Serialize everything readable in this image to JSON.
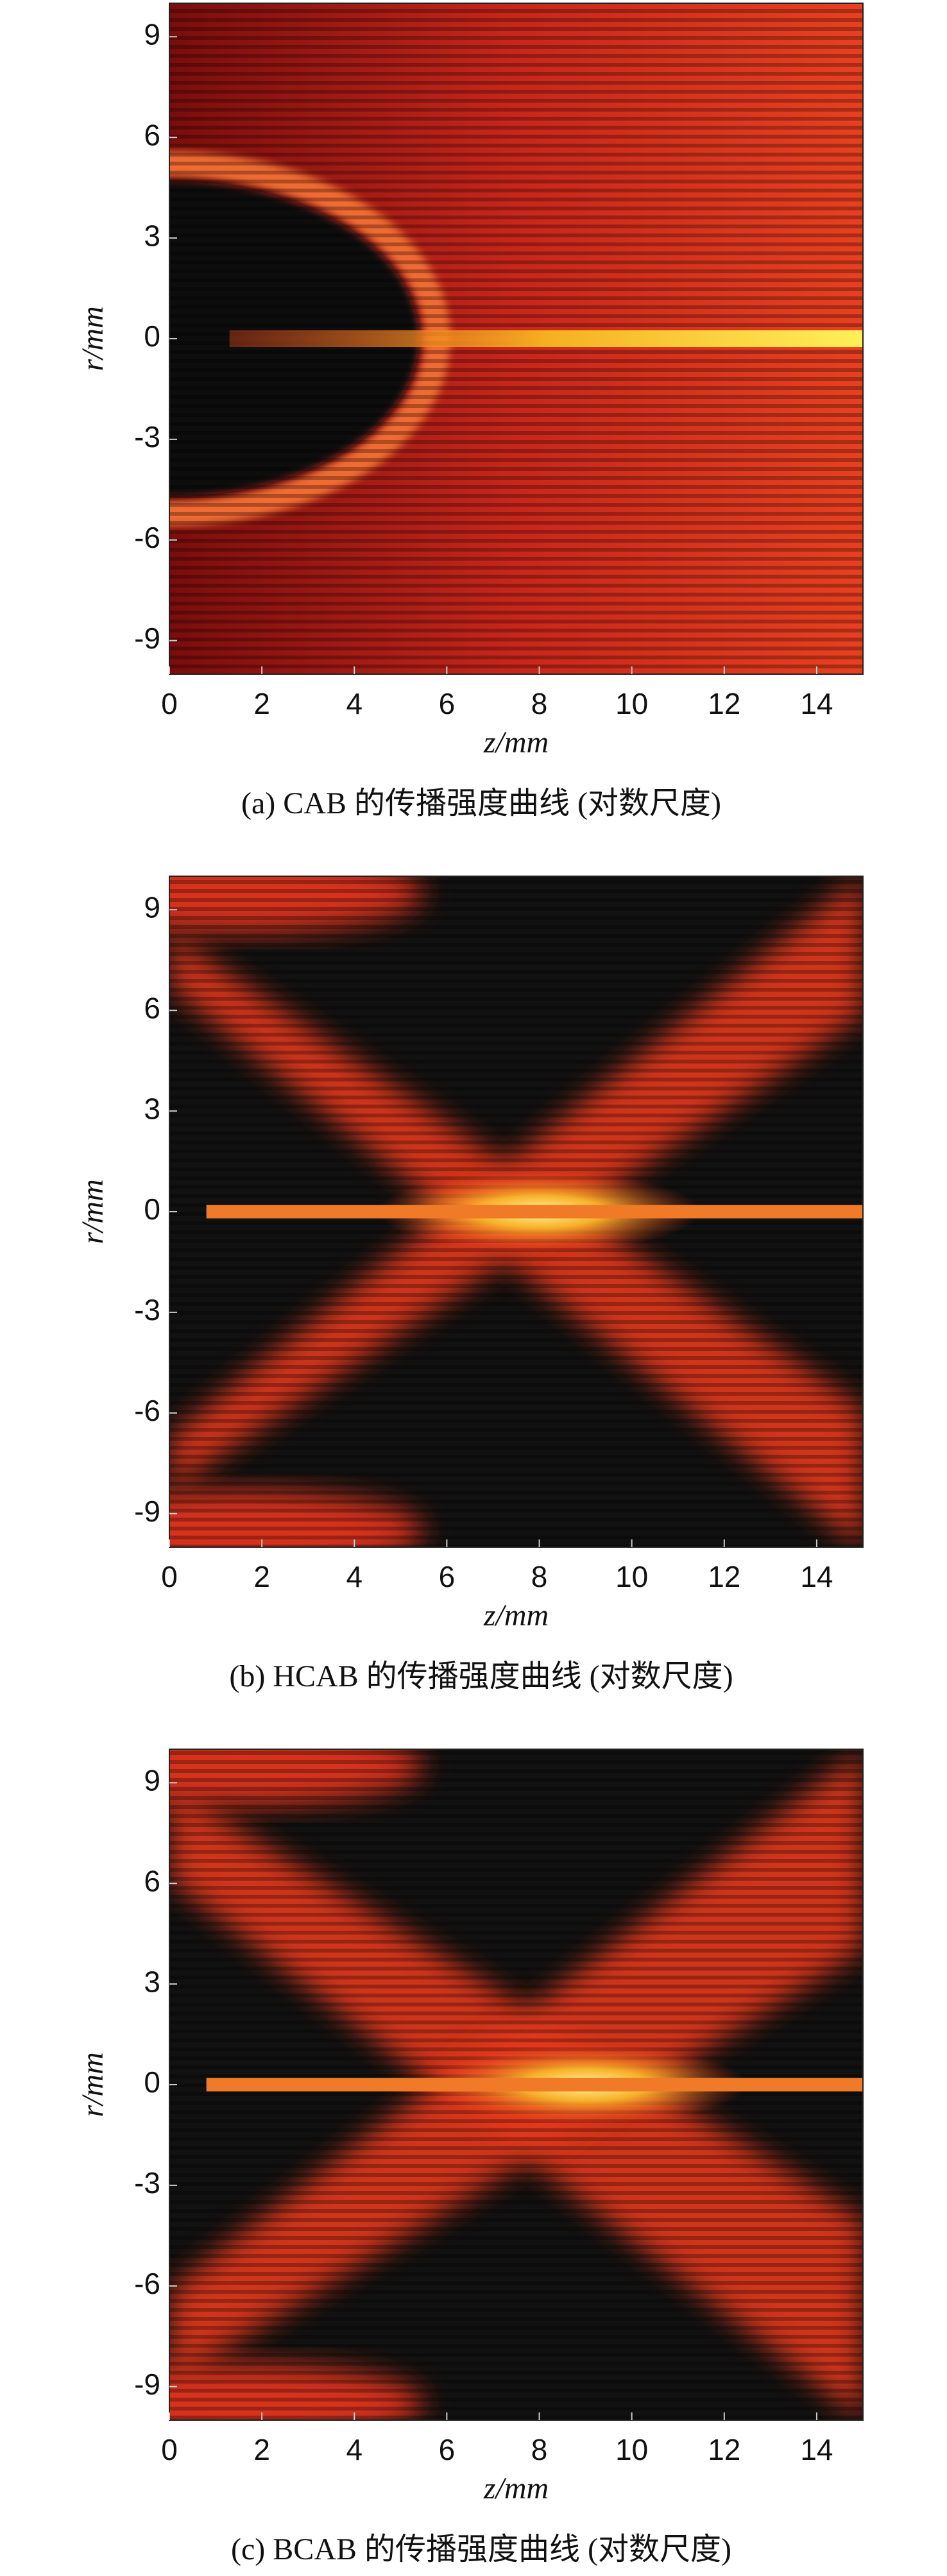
{
  "chart_data": [
    {
      "type": "heatmap",
      "xlabel": "z/mm",
      "ylabel": "r/mm",
      "caption": "(a) CAB 的传播强度曲线 (对数尺度)",
      "xlim": [
        0,
        15
      ],
      "ylim": [
        -10,
        10
      ],
      "xticks": [
        0,
        2,
        4,
        6,
        8,
        10,
        12,
        14
      ],
      "yticks": [
        -9,
        -6,
        -3,
        0,
        3,
        6,
        9
      ]
    },
    {
      "type": "heatmap",
      "xlabel": "z/mm",
      "ylabel": "r/mm",
      "caption": "(b) HCAB 的传播强度曲线 (对数尺度)",
      "xlim": [
        0,
        15
      ],
      "ylim": [
        -10,
        10
      ],
      "xticks": [
        0,
        2,
        4,
        6,
        8,
        10,
        12,
        14
      ],
      "yticks": [
        -9,
        -6,
        -3,
        0,
        3,
        6,
        9
      ]
    },
    {
      "type": "heatmap",
      "xlabel": "z/mm",
      "ylabel": "r/mm",
      "caption": "(c) BCAB 的传播强度曲线 (对数尺度)",
      "xlim": [
        0,
        15
      ],
      "ylim": [
        -10,
        10
      ],
      "xticks": [
        0,
        2,
        4,
        6,
        8,
        10,
        12,
        14
      ],
      "yticks": [
        -9,
        -6,
        -3,
        0,
        3,
        6,
        9
      ]
    }
  ]
}
